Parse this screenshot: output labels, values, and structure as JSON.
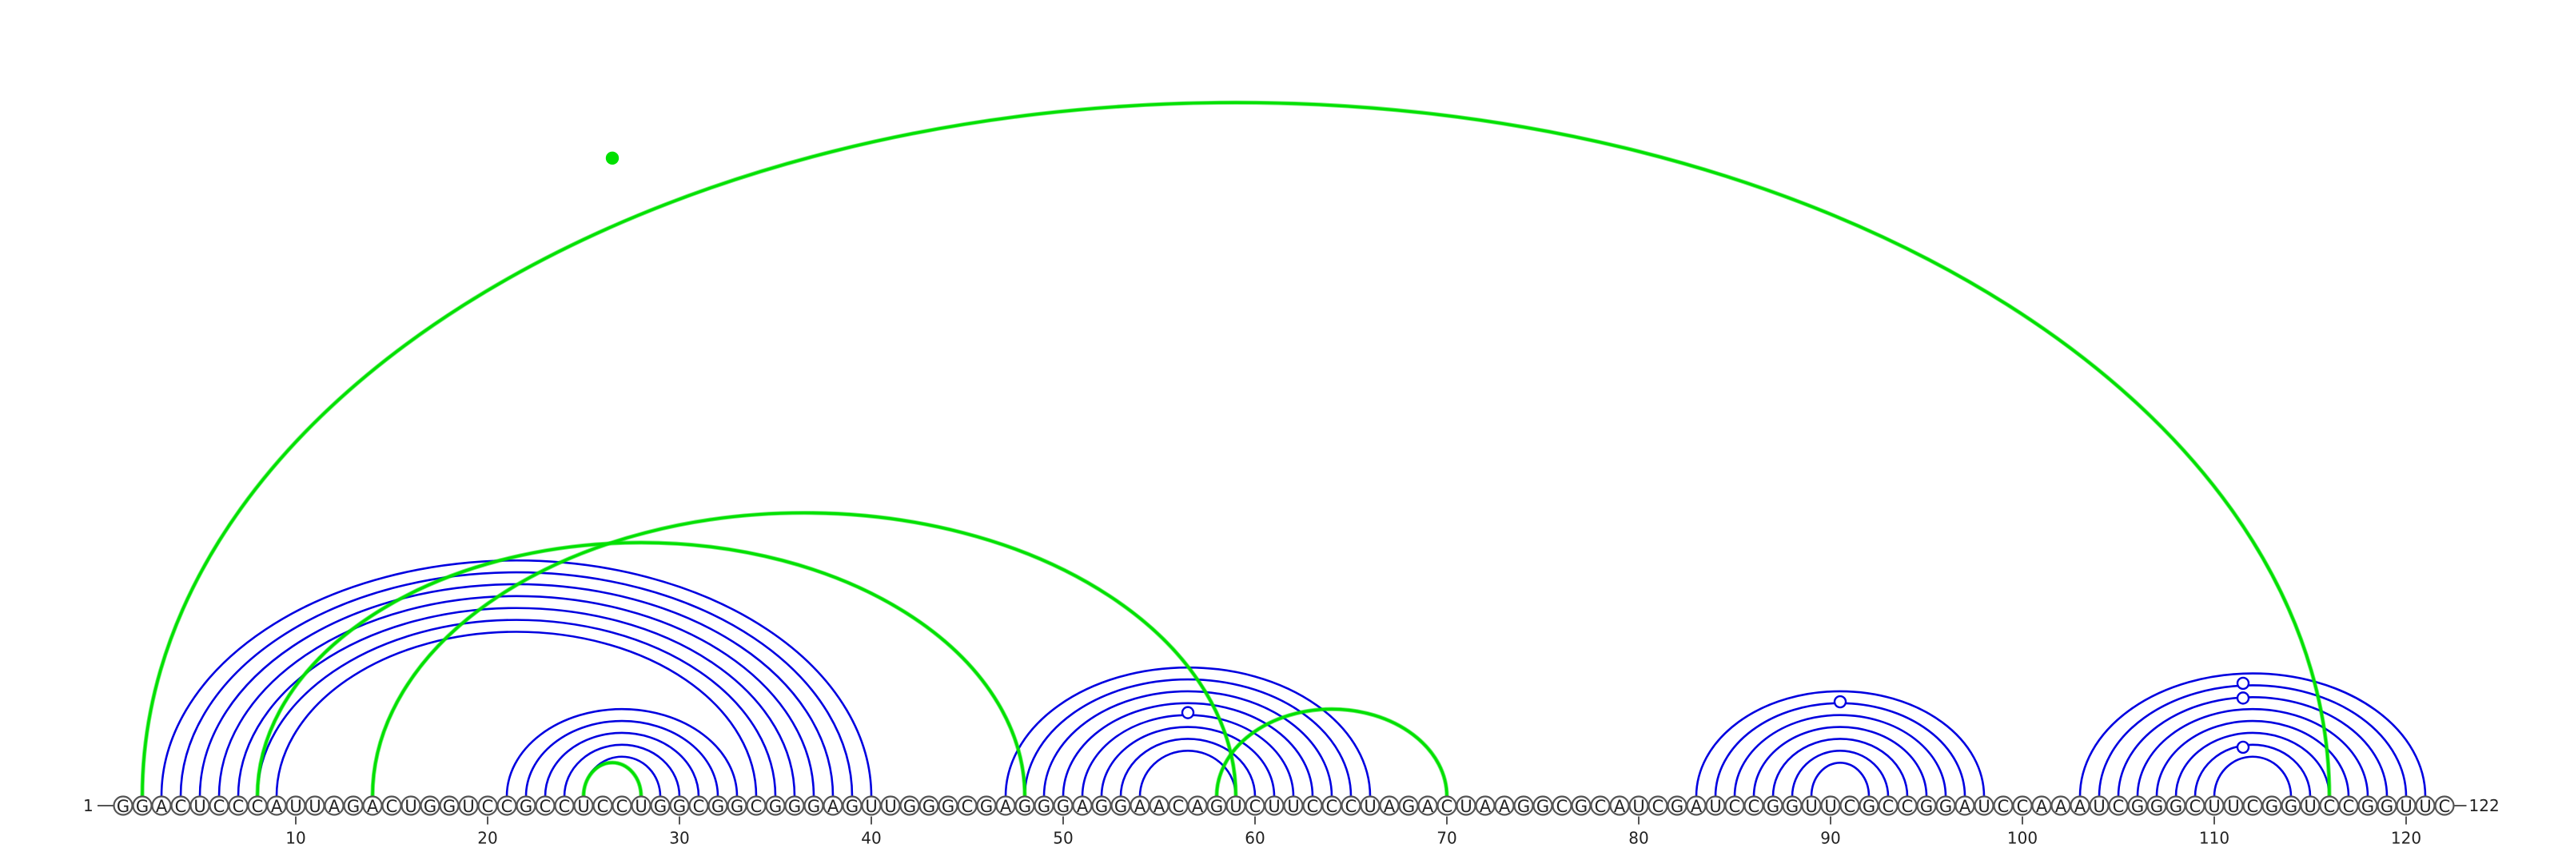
{
  "sequence": "GGACUCCCAUUAGACUGGUCCGCCUCCUGGCGGCGGGAGUUGGGCGAGGGAGGAACAGUCUUCCCUAGACUAAGGCGCAUCGAUCCGGUUCGCCGGAUCCAAAUCGGGCUUCGGUCCGGUUC",
  "start_label": "1",
  "end_label": "122",
  "ticks": [
    {
      "position": 10,
      "label": "10"
    },
    {
      "position": 20,
      "label": "20"
    },
    {
      "position": 30,
      "label": "30"
    },
    {
      "position": 40,
      "label": "40"
    },
    {
      "position": 50,
      "label": "50"
    },
    {
      "position": 60,
      "label": "60"
    },
    {
      "position": 70,
      "label": "70"
    },
    {
      "position": 80,
      "label": "80"
    },
    {
      "position": 90,
      "label": "90"
    },
    {
      "position": 100,
      "label": "100"
    },
    {
      "position": 110,
      "label": "110"
    },
    {
      "position": 120,
      "label": "120"
    }
  ],
  "colors": {
    "pair_primary": "#0000e0",
    "pair_alternative": "#00e000",
    "nucleotide_outline": "#555555"
  },
  "arcs": [
    {
      "type": "primary",
      "i": 3,
      "j": 40
    },
    {
      "type": "primary",
      "i": 4,
      "j": 39
    },
    {
      "type": "primary",
      "i": 5,
      "j": 38
    },
    {
      "type": "primary",
      "i": 6,
      "j": 37
    },
    {
      "type": "primary",
      "i": 7,
      "j": 36
    },
    {
      "type": "primary",
      "i": 8,
      "j": 35
    },
    {
      "type": "primary",
      "i": 9,
      "j": 34
    },
    {
      "type": "primary",
      "i": 21,
      "j": 33
    },
    {
      "type": "primary",
      "i": 22,
      "j": 32
    },
    {
      "type": "primary",
      "i": 23,
      "j": 31
    },
    {
      "type": "primary",
      "i": 24,
      "j": 30
    },
    {
      "type": "primary",
      "i": 25,
      "j": 29
    },
    {
      "type": "primary",
      "i": 47,
      "j": 66
    },
    {
      "type": "primary",
      "i": 48,
      "j": 65
    },
    {
      "type": "primary",
      "i": 49,
      "j": 64
    },
    {
      "type": "primary",
      "i": 50,
      "j": 63
    },
    {
      "type": "primary",
      "i": 51,
      "j": 62
    },
    {
      "type": "primary",
      "i": 52,
      "j": 61
    },
    {
      "type": "primary",
      "i": 53,
      "j": 60
    },
    {
      "type": "primary",
      "i": 54,
      "j": 59
    },
    {
      "type": "primary",
      "i": 83,
      "j": 98
    },
    {
      "type": "primary",
      "i": 84,
      "j": 97
    },
    {
      "type": "primary",
      "i": 85,
      "j": 96
    },
    {
      "type": "primary",
      "i": 86,
      "j": 95
    },
    {
      "type": "primary",
      "i": 87,
      "j": 94
    },
    {
      "type": "primary",
      "i": 88,
      "j": 93
    },
    {
      "type": "primary",
      "i": 89,
      "j": 92
    },
    {
      "type": "primary",
      "i": 103,
      "j": 121
    },
    {
      "type": "primary",
      "i": 104,
      "j": 120
    },
    {
      "type": "primary",
      "i": 105,
      "j": 119
    },
    {
      "type": "primary",
      "i": 106,
      "j": 118
    },
    {
      "type": "primary",
      "i": 107,
      "j": 117
    },
    {
      "type": "primary",
      "i": 108,
      "j": 116
    },
    {
      "type": "primary",
      "i": 109,
      "j": 115
    },
    {
      "type": "primary",
      "i": 110,
      "j": 114
    },
    {
      "type": "alternative",
      "i": 2,
      "j": 116
    },
    {
      "type": "alternative",
      "i": 8,
      "j": 48
    },
    {
      "type": "alternative",
      "i": 14,
      "j": 59
    },
    {
      "type": "alternative",
      "i": 25,
      "j": 28
    },
    {
      "type": "alternative",
      "i": 58,
      "j": 70
    }
  ],
  "markers": [
    {
      "type": "primary",
      "style": "open",
      "between": [
        56,
        57
      ],
      "level": 0.65
    },
    {
      "type": "primary",
      "style": "open",
      "between": [
        90,
        91
      ],
      "level": 0.9
    },
    {
      "type": "primary",
      "style": "open",
      "between": [
        111,
        112
      ],
      "level": 0.4
    },
    {
      "type": "primary",
      "style": "open",
      "between": [
        111,
        112
      ],
      "level": 0.8
    },
    {
      "type": "primary",
      "style": "open",
      "between": [
        111,
        112
      ],
      "level": 0.92
    },
    {
      "type": "alternative",
      "style": "filled",
      "between": [
        26,
        27
      ],
      "level": 0.92
    }
  ]
}
